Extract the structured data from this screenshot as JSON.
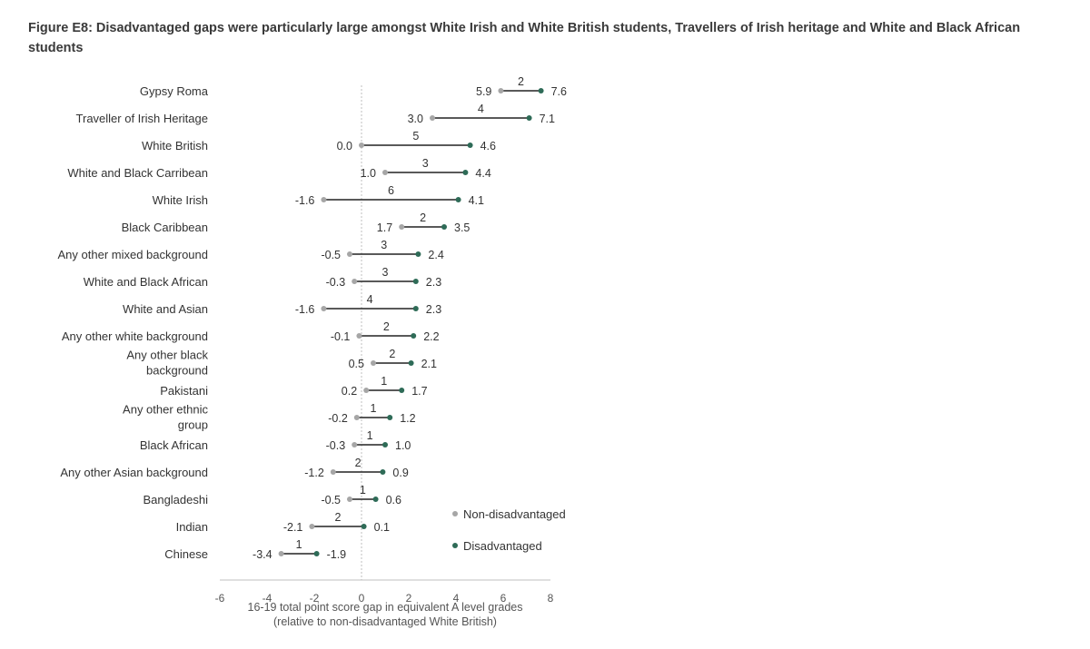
{
  "chart_data": {
    "type": "dumbbell",
    "title": "Figure E8: Disadvantaged gaps were particularly large amongst White Irish and White British students, Travellers of Irish heritage and White and Black African students",
    "xlabel": [
      "16-19 total point score gap in equivalent A level grades",
      "(relative to non-disadvantaged White British)"
    ],
    "xlim": [
      -6,
      8
    ],
    "xticks": [
      "-6",
      "-4",
      "-2",
      "0",
      "2",
      "4",
      "6",
      "8"
    ],
    "grid": false,
    "legend_position": "right",
    "colors": {
      "non_disadvantaged": "#a6a6a6",
      "disadvantaged": "#2e6b57",
      "connector": "#222222",
      "zero_line": "#bfbfbf",
      "axis": "#bfbfbf"
    },
    "series": [
      {
        "name": "Non-disadvantaged",
        "key": "non_disadvantaged"
      },
      {
        "name": "Disadvantaged",
        "key": "disadvantaged"
      }
    ],
    "rows": [
      {
        "category": [
          "Gypsy Roma"
        ],
        "non_disadvantaged": 5.9,
        "non_label": "5.9",
        "disadvantaged": 7.6,
        "dis_label": "7.6",
        "gap_label": "2"
      },
      {
        "category": [
          "Traveller of Irish Heritage"
        ],
        "non_disadvantaged": 3.0,
        "non_label": "3.0",
        "disadvantaged": 7.1,
        "dis_label": "7.1",
        "gap_label": "4"
      },
      {
        "category": [
          "White British"
        ],
        "non_disadvantaged": 0.0,
        "non_label": "0.0",
        "disadvantaged": 4.6,
        "dis_label": "4.6",
        "gap_label": "5"
      },
      {
        "category": [
          "White and Black Carribean"
        ],
        "non_disadvantaged": 1.0,
        "non_label": "1.0",
        "disadvantaged": 4.4,
        "dis_label": "4.4",
        "gap_label": "3"
      },
      {
        "category": [
          "White Irish"
        ],
        "non_disadvantaged": -1.6,
        "non_label": "-1.6",
        "disadvantaged": 4.1,
        "dis_label": "4.1",
        "gap_label": "6"
      },
      {
        "category": [
          "Black Caribbean"
        ],
        "non_disadvantaged": 1.7,
        "non_label": "1.7",
        "disadvantaged": 3.5,
        "dis_label": "3.5",
        "gap_label": "2"
      },
      {
        "category": [
          "Any other mixed background"
        ],
        "non_disadvantaged": -0.5,
        "non_label": "-0.5",
        "disadvantaged": 2.4,
        "dis_label": "2.4",
        "gap_label": "3"
      },
      {
        "category": [
          "White and Black African"
        ],
        "non_disadvantaged": -0.3,
        "non_label": "-0.3",
        "disadvantaged": 2.3,
        "dis_label": "2.3",
        "gap_label": "3"
      },
      {
        "category": [
          "White and Asian"
        ],
        "non_disadvantaged": -1.6,
        "non_label": "-1.6",
        "disadvantaged": 2.3,
        "dis_label": "2.3",
        "gap_label": "4"
      },
      {
        "category": [
          "Any other white background"
        ],
        "non_disadvantaged": -0.1,
        "non_label": "-0.1",
        "disadvantaged": 2.2,
        "dis_label": "2.2",
        "gap_label": "2"
      },
      {
        "category": [
          "Any other black",
          "background"
        ],
        "non_disadvantaged": 0.5,
        "non_label": "0.5",
        "disadvantaged": 2.1,
        "dis_label": "2.1",
        "gap_label": "2"
      },
      {
        "category": [
          "Pakistani"
        ],
        "non_disadvantaged": 0.2,
        "non_label": "0.2",
        "disadvantaged": 1.7,
        "dis_label": "1.7",
        "gap_label": "1"
      },
      {
        "category": [
          "Any other ethnic",
          "group"
        ],
        "non_disadvantaged": -0.2,
        "non_label": "-0.2",
        "disadvantaged": 1.2,
        "dis_label": "1.2",
        "gap_label": "1"
      },
      {
        "category": [
          "Black African"
        ],
        "non_disadvantaged": -0.3,
        "non_label": "-0.3",
        "disadvantaged": 1.0,
        "dis_label": "1.0",
        "gap_label": "1"
      },
      {
        "category": [
          "Any other Asian background"
        ],
        "non_disadvantaged": -1.2,
        "non_label": "-1.2",
        "disadvantaged": 0.9,
        "dis_label": "0.9",
        "gap_label": "2"
      },
      {
        "category": [
          "Bangladeshi"
        ],
        "non_disadvantaged": -0.5,
        "non_label": "-0.5",
        "disadvantaged": 0.6,
        "dis_label": "0.6",
        "gap_label": "1"
      },
      {
        "category": [
          "Indian"
        ],
        "non_disadvantaged": -2.1,
        "non_label": "-2.1",
        "disadvantaged": 0.1,
        "dis_label": "0.1",
        "gap_label": "2"
      },
      {
        "category": [
          "Chinese"
        ],
        "non_disadvantaged": -3.4,
        "non_label": "-3.4",
        "disadvantaged": -1.9,
        "dis_label": "-1.9",
        "gap_label": "1"
      }
    ]
  }
}
